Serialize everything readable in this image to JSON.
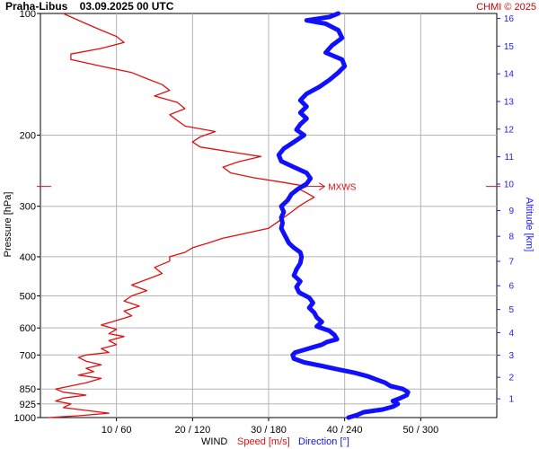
{
  "chart_data": {
    "type": "line",
    "title": "Praha-Libus    03.09.2025 00 UTC",
    "credit": "CHMI © 2025",
    "ylabel": "Pressure [hPa]",
    "y_scale": "log",
    "ylim": [
      1000,
      100
    ],
    "pressure_ticks": [
      "100",
      "200",
      "300",
      "400",
      "500",
      "600",
      "700",
      "850",
      "925",
      "1000"
    ],
    "right_axis": {
      "label": "Altitude [km]",
      "ticks": [
        "1",
        "2",
        "3",
        "4",
        "5",
        "6",
        "7",
        "8",
        "9",
        "10",
        "11",
        "12",
        "13",
        "14",
        "15",
        "16"
      ]
    },
    "x_ticks": [
      "10 / 60",
      "20 / 120",
      "30 / 180",
      "40 / 240",
      "50 / 300"
    ],
    "x_label": {
      "prefix": "WIND",
      "speed": "Speed [m/s]",
      "direction": "Direction [°]"
    },
    "speed_xlim": [
      0,
      60
    ],
    "direction_xlim": [
      0,
      360
    ],
    "mxws": {
      "label": "MXWS",
      "pressure": 268,
      "speed": 35
    },
    "colors": {
      "speed": "#e01010",
      "direction": "#1010ff",
      "grid": "#b4b4b4",
      "credit": "#d00000",
      "altitude": "#1a1aff"
    },
    "series": [
      {
        "name": "Speed [m/s]",
        "points": [
          [
            1000,
            1
          ],
          [
            990,
            5
          ],
          [
            975,
            9
          ],
          [
            960,
            6
          ],
          [
            945,
            3
          ],
          [
            925,
            4
          ],
          [
            910,
            2
          ],
          [
            895,
            3
          ],
          [
            880,
            6
          ],
          [
            865,
            3
          ],
          [
            850,
            2
          ],
          [
            835,
            4
          ],
          [
            820,
            6
          ],
          [
            800,
            8
          ],
          [
            785,
            5
          ],
          [
            770,
            7
          ],
          [
            755,
            6
          ],
          [
            740,
            8
          ],
          [
            725,
            6
          ],
          [
            710,
            5
          ],
          [
            700,
            6
          ],
          [
            690,
            9
          ],
          [
            675,
            8
          ],
          [
            660,
            10
          ],
          [
            645,
            9
          ],
          [
            630,
            11
          ],
          [
            620,
            9
          ],
          [
            605,
            10
          ],
          [
            590,
            8
          ],
          [
            575,
            10
          ],
          [
            560,
            12
          ],
          [
            545,
            11
          ],
          [
            530,
            13
          ],
          [
            515,
            11
          ],
          [
            500,
            12
          ],
          [
            485,
            14
          ],
          [
            470,
            12
          ],
          [
            455,
            14
          ],
          [
            440,
            16
          ],
          [
            425,
            15
          ],
          [
            410,
            17
          ],
          [
            400,
            17
          ],
          [
            390,
            19
          ],
          [
            380,
            20
          ],
          [
            370,
            22
          ],
          [
            360,
            24
          ],
          [
            350,
            27
          ],
          [
            340,
            30
          ],
          [
            330,
            31
          ],
          [
            320,
            32
          ],
          [
            310,
            33
          ],
          [
            300,
            34
          ],
          [
            292,
            35
          ],
          [
            285,
            36
          ],
          [
            278,
            35
          ],
          [
            272,
            34
          ],
          [
            268,
            35
          ],
          [
            262,
            32
          ],
          [
            255,
            28
          ],
          [
            248,
            25
          ],
          [
            240,
            24
          ],
          [
            233,
            26
          ],
          [
            226,
            29
          ],
          [
            220,
            25
          ],
          [
            214,
            21
          ],
          [
            208,
            20
          ],
          [
            202,
            21
          ],
          [
            196,
            23
          ],
          [
            190,
            19
          ],
          [
            184,
            18
          ],
          [
            178,
            17
          ],
          [
            172,
            19
          ],
          [
            166,
            18
          ],
          [
            160,
            15
          ],
          [
            155,
            17
          ],
          [
            150,
            16
          ],
          [
            145,
            14
          ],
          [
            140,
            12
          ],
          [
            135,
            8
          ],
          [
            130,
            4
          ],
          [
            126,
            4
          ],
          [
            122,
            8
          ],
          [
            118,
            11
          ],
          [
            114,
            10
          ],
          [
            110,
            8
          ],
          [
            106,
            6
          ],
          [
            102,
            4
          ],
          [
            100,
            3
          ]
        ]
      },
      {
        "name": "Direction [°]",
        "points": [
          [
            1000,
            243
          ],
          [
            985,
            250
          ],
          [
            970,
            255
          ],
          [
            955,
            270
          ],
          [
            940,
            278
          ],
          [
            925,
            282
          ],
          [
            910,
            278
          ],
          [
            895,
            284
          ],
          [
            880,
            289
          ],
          [
            865,
            290
          ],
          [
            850,
            286
          ],
          [
            835,
            276
          ],
          [
            820,
            272
          ],
          [
            805,
            265
          ],
          [
            790,
            258
          ],
          [
            775,
            248
          ],
          [
            760,
            235
          ],
          [
            745,
            222
          ],
          [
            730,
            208
          ],
          [
            715,
            200
          ],
          [
            700,
            199
          ],
          [
            690,
            201
          ],
          [
            680,
            208
          ],
          [
            670,
            215
          ],
          [
            660,
            222
          ],
          [
            650,
            226
          ],
          [
            640,
            234
          ],
          [
            625,
            232
          ],
          [
            610,
            228
          ],
          [
            595,
            218
          ],
          [
            580,
            222
          ],
          [
            565,
            218
          ],
          [
            550,
            216
          ],
          [
            535,
            212
          ],
          [
            520,
            215
          ],
          [
            505,
            212
          ],
          [
            490,
            204
          ],
          [
            475,
            202
          ],
          [
            460,
            205
          ],
          [
            445,
            200
          ],
          [
            430,
            202
          ],
          [
            415,
            205
          ],
          [
            400,
            206
          ],
          [
            390,
            205
          ],
          [
            380,
            200
          ],
          [
            370,
            196
          ],
          [
            360,
            194
          ],
          [
            350,
            192
          ],
          [
            340,
            190
          ],
          [
            330,
            191
          ],
          [
            320,
            190
          ],
          [
            310,
            192
          ],
          [
            300,
            190
          ],
          [
            290,
            195
          ],
          [
            280,
            198
          ],
          [
            272,
            203
          ],
          [
            264,
            210
          ],
          [
            256,
            213
          ],
          [
            248,
            210
          ],
          [
            240,
            200
          ],
          [
            232,
            190
          ],
          [
            224,
            188
          ],
          [
            216,
            192
          ],
          [
            208,
            200
          ],
          [
            200,
            208
          ],
          [
            194,
            202
          ],
          [
            188,
            205
          ],
          [
            182,
            210
          ],
          [
            176,
            205
          ],
          [
            170,
            210
          ],
          [
            164,
            205
          ],
          [
            158,
            210
          ],
          [
            152,
            220
          ],
          [
            146,
            228
          ],
          [
            140,
            235
          ],
          [
            135,
            240
          ],
          [
            130,
            238
          ],
          [
            125,
            225
          ],
          [
            120,
            230
          ],
          [
            115,
            238
          ],
          [
            110,
            235
          ],
          [
            106,
            225
          ],
          [
            104,
            210
          ],
          [
            102,
            228
          ],
          [
            100,
            235
          ]
        ]
      }
    ]
  }
}
